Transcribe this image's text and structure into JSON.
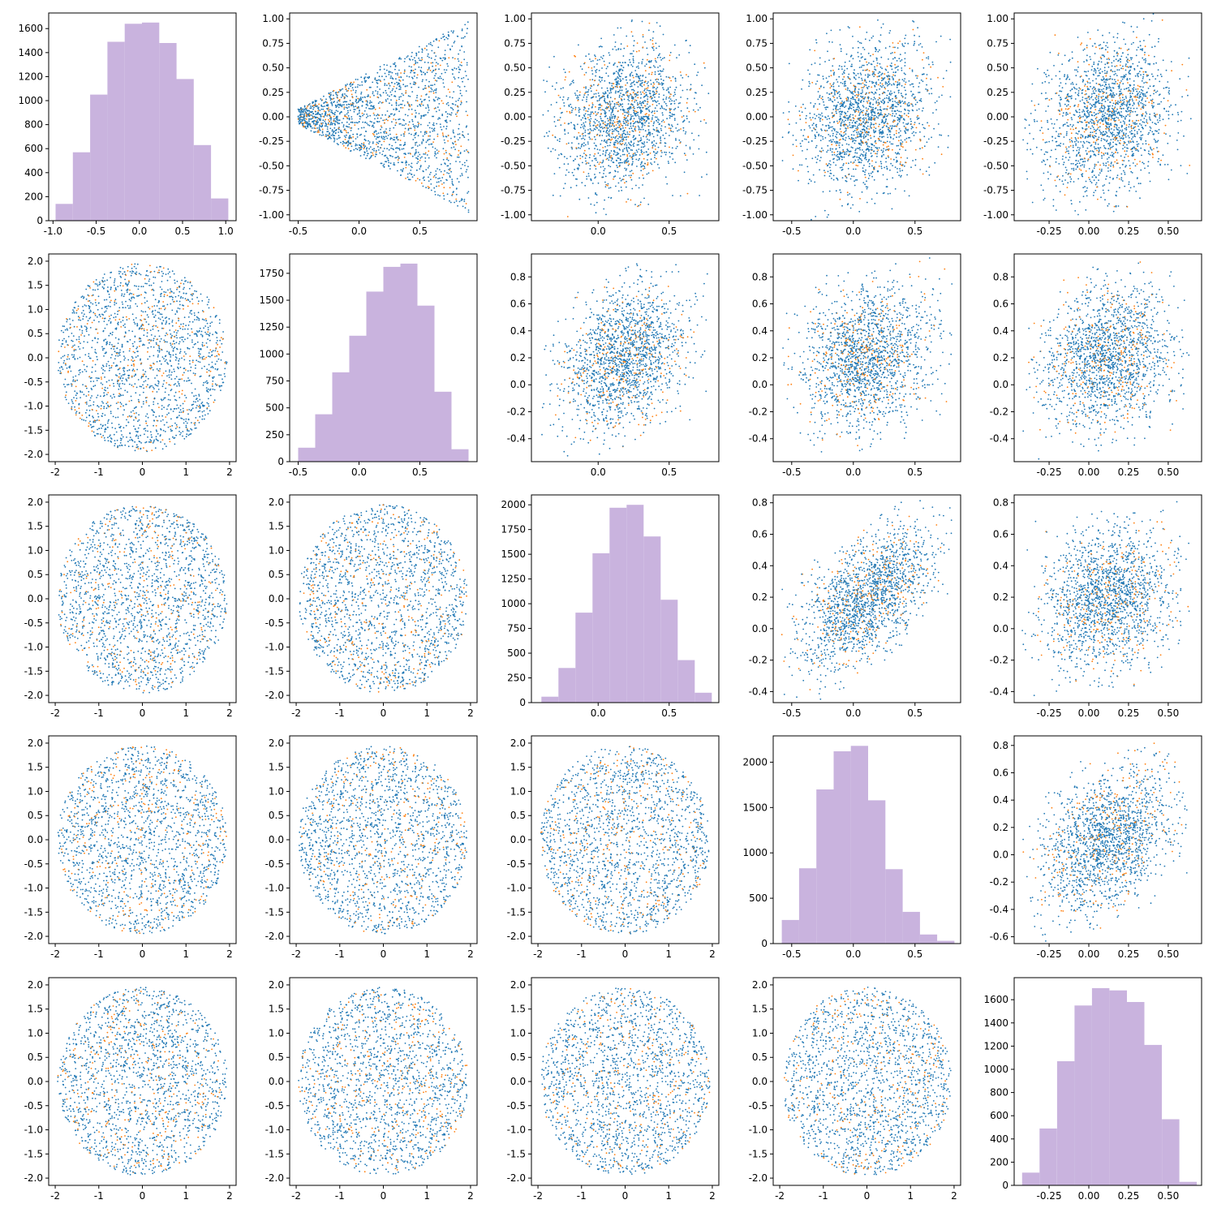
{
  "colors": {
    "series_a": "#1f77b4",
    "series_b": "#ff7f0e",
    "histogram": "#c9b3de"
  },
  "chart_data": {
    "type": "scatter-matrix",
    "grid": false,
    "legend": "none",
    "variables": [
      {
        "range": [
          -1.0,
          1.0
        ],
        "xlim": [
          -1.05,
          1.12
        ],
        "xticks": [
          "-1.0",
          "-0.5",
          "0.0",
          "0.5",
          "1.0"
        ]
      },
      {
        "range": [
          -0.5,
          0.9
        ],
        "xlim": [
          -0.57,
          0.97
        ],
        "xticks": [
          "-0.5",
          "0.0",
          "0.5"
        ]
      },
      {
        "range": [
          -0.4,
          0.78
        ],
        "xlim": [
          -0.47,
          0.85
        ],
        "xticks": [
          "0.0",
          "0.5"
        ]
      },
      {
        "range": [
          -0.58,
          0.8
        ],
        "xlim": [
          -0.65,
          0.87
        ],
        "xticks": [
          "-0.5",
          "0.0",
          "0.5"
        ]
      },
      {
        "range": [
          -0.42,
          0.65
        ],
        "xlim": [
          -0.47,
          0.71
        ],
        "xticks": [
          "-0.25",
          "0.00",
          "0.25",
          "0.50"
        ]
      }
    ],
    "lower_scatter_range": [
      -2.0,
      2.0
    ],
    "lower_scatter_ticks": [
      "-2",
      "-1",
      "0",
      "1",
      "2"
    ],
    "histograms": [
      {
        "edges": [
          -0.97,
          -0.77,
          -0.57,
          -0.37,
          -0.17,
          0.03,
          0.23,
          0.43,
          0.63,
          0.83,
          1.03
        ],
        "counts": [
          140,
          570,
          1050,
          1490,
          1640,
          1650,
          1480,
          1180,
          630,
          185
        ],
        "ylim": [
          0,
          1730
        ],
        "yticks": [
          "0",
          "200",
          "400",
          "600",
          "800",
          "1000",
          "1200",
          "1400",
          "1600"
        ]
      },
      {
        "edges": [
          -0.5,
          -0.36,
          -0.22,
          -0.08,
          0.06,
          0.2,
          0.34,
          0.48,
          0.62,
          0.76,
          0.9
        ],
        "counts": [
          130,
          440,
          830,
          1170,
          1580,
          1810,
          1840,
          1450,
          650,
          115
        ],
        "ylim": [
          0,
          1930
        ],
        "yticks": [
          "0",
          "250",
          "500",
          "750",
          "1000",
          "1250",
          "1500",
          "1750"
        ]
      },
      {
        "edges": [
          -0.4,
          -0.28,
          -0.16,
          -0.04,
          0.08,
          0.2,
          0.32,
          0.44,
          0.56,
          0.68,
          0.8
        ],
        "counts": [
          60,
          350,
          910,
          1510,
          1970,
          2000,
          1680,
          1040,
          430,
          100
        ],
        "ylim": [
          0,
          2100
        ],
        "yticks": [
          "0",
          "250",
          "500",
          "750",
          "1000",
          "1250",
          "1500",
          "1750",
          "2000"
        ]
      },
      {
        "edges": [
          -0.58,
          -0.44,
          -0.3,
          -0.16,
          -0.02,
          0.12,
          0.26,
          0.4,
          0.54,
          0.68,
          0.82
        ],
        "counts": [
          260,
          830,
          1700,
          2120,
          2180,
          1580,
          820,
          350,
          100,
          30
        ],
        "ylim": [
          0,
          2290
        ],
        "yticks": [
          "0",
          "500",
          "1000",
          "1500",
          "2000"
        ]
      },
      {
        "edges": [
          -0.42,
          -0.31,
          -0.2,
          -0.09,
          0.02,
          0.13,
          0.24,
          0.35,
          0.46,
          0.57,
          0.68
        ],
        "counts": [
          110,
          490,
          1070,
          1550,
          1700,
          1680,
          1580,
          1210,
          570,
          30
        ],
        "ylim": [
          0,
          1790
        ],
        "yticks": [
          "0",
          "200",
          "400",
          "600",
          "800",
          "1000",
          "1200",
          "1400",
          "1600"
        ]
      }
    ],
    "upper_scatter_yticks": [
      [
        "-1.00",
        "-0.75",
        "-0.50",
        "-0.25",
        "0.00",
        "0.25",
        "0.50",
        "0.75",
        "1.00"
      ],
      [
        "-0.4",
        "-0.2",
        "0.0",
        "0.2",
        "0.4",
        "0.6",
        "0.8"
      ],
      [
        "-0.4",
        "-0.2",
        "0.0",
        "0.2",
        "0.4",
        "0.6",
        "0.8"
      ],
      [
        "-0.6",
        "-0.4",
        "-0.2",
        "0.0",
        "0.2",
        "0.4",
        "0.6",
        "0.8"
      ]
    ],
    "upper_scatter_ylims": [
      [
        -1.06,
        1.06
      ],
      [
        -0.57,
        0.97
      ],
      [
        -0.47,
        0.85
      ],
      [
        -0.65,
        0.87
      ]
    ],
    "upper_scatter_ydomains": [
      [
        -1.0,
        1.0
      ],
      [
        -0.5,
        0.9
      ],
      [
        -0.4,
        0.78
      ],
      [
        -0.58,
        0.8
      ]
    ]
  }
}
